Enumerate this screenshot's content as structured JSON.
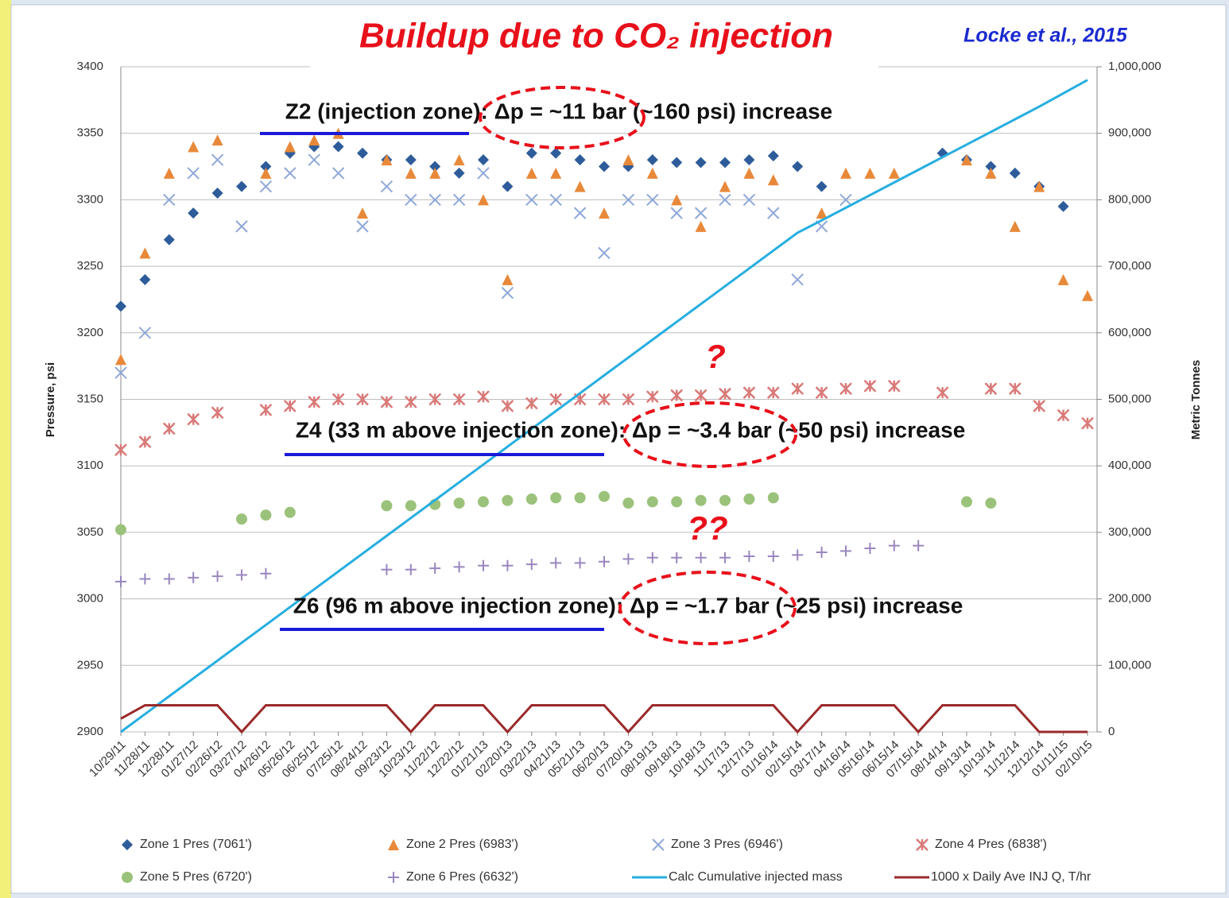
{
  "chart_data": {
    "type": "scatter",
    "title": "Buildup due to CO₂ injection",
    "source": "Locke et al., 2015",
    "y_label": "Pressure, psi",
    "y2_label": "Metric Tonnes",
    "annotations": [
      "Z2 (injection zone): Δp = ~11 bar (~160 psi) increase",
      "Z4 (33 m above injection zone): Δp = ~3.4 bar (~50 psi) increase",
      "Z6 (96 m above injection zone): Δp = ~1.7 bar (~25 psi) increase",
      "?",
      "??"
    ],
    "categories": [
      "10/29/11",
      "11/28/11",
      "12/28/11",
      "01/27/12",
      "02/26/12",
      "03/27/12",
      "04/26/12",
      "05/26/12",
      "06/25/12",
      "07/25/12",
      "08/24/12",
      "09/23/12",
      "10/23/12",
      "11/22/12",
      "12/22/12",
      "01/21/13",
      "02/20/13",
      "03/22/13",
      "04/21/13",
      "05/21/13",
      "06/20/13",
      "07/20/13",
      "08/19/13",
      "09/18/13",
      "10/18/13",
      "11/17/13",
      "12/17/13",
      "01/16/14",
      "02/15/14",
      "03/17/14",
      "04/16/14",
      "05/16/14",
      "06/15/14",
      "07/15/14",
      "08/14/14",
      "09/13/14",
      "10/13/14",
      "11/12/14",
      "12/12/14",
      "01/11/15",
      "02/10/15"
    ],
    "ylim": [
      2900,
      3400
    ],
    "yticks": [
      2900,
      2950,
      3000,
      3050,
      3100,
      3150,
      3200,
      3250,
      3300,
      3350,
      3400
    ],
    "y2lim": [
      0,
      1000000
    ],
    "y2ticks": [
      0,
      {
        "value": 100000,
        "label": "100,000"
      },
      {
        "value": 200000,
        "label": "200,000"
      },
      {
        "value": 300000,
        "label": "300,000"
      },
      {
        "value": 400000,
        "label": "400,000"
      },
      {
        "value": 500000,
        "label": "500,000"
      },
      {
        "value": 600000,
        "label": "600,000"
      },
      {
        "value": 700000,
        "label": "700,000"
      },
      {
        "value": 800000,
        "label": "800,000"
      },
      {
        "value": 900000,
        "label": "900,000"
      },
      {
        "value": 1000000,
        "label": "1,000,000"
      }
    ],
    "grid": true,
    "series": [
      {
        "name": "Zone 1 Pres (7061')",
        "color": "#2e5c9a",
        "marker": "diamond",
        "values": [
          3220,
          3240,
          3270,
          3290,
          3305,
          3310,
          3325,
          3335,
          3340,
          3340,
          3335,
          3330,
          3330,
          3325,
          3320,
          3330,
          3310,
          3335,
          3335,
          3330,
          3325,
          3325,
          3330,
          3328,
          3328,
          3328,
          3330,
          3333,
          3325,
          3310,
          null,
          null,
          null,
          null,
          3335,
          3330,
          3325,
          3320,
          3310,
          3295,
          null
        ]
      },
      {
        "name": "Zone 2 Pres (6983')",
        "color": "#e8893a",
        "marker": "triangle",
        "values": [
          3180,
          3260,
          3320,
          3340,
          3345,
          null,
          3320,
          3340,
          3345,
          3350,
          3290,
          3330,
          3320,
          3320,
          3330,
          3300,
          3240,
          3320,
          3320,
          3310,
          3290,
          3330,
          3320,
          3300,
          3280,
          3310,
          3320,
          3315,
          null,
          3290,
          3320,
          3320,
          3320,
          null,
          null,
          3330,
          3320,
          3280,
          3310,
          3240,
          3228
        ]
      },
      {
        "name": "Zone 3 Pres (6946')",
        "color": "#8fa8d8",
        "marker": "x",
        "values": [
          3170,
          3200,
          3300,
          3320,
          3330,
          3280,
          3310,
          3320,
          3330,
          3320,
          3280,
          3310,
          3300,
          3300,
          3300,
          3320,
          3230,
          3300,
          3300,
          3290,
          3260,
          3300,
          3300,
          3290,
          3290,
          3300,
          3300,
          3290,
          3240,
          3280,
          3300,
          null,
          null,
          null,
          null,
          null,
          null,
          null,
          null,
          null,
          null
        ]
      },
      {
        "name": "Zone 4 Pres (6838')",
        "color": "#d97a78",
        "marker": "asterisk",
        "values": [
          3112,
          3118,
          3128,
          3135,
          3140,
          null,
          3142,
          3145,
          3148,
          3150,
          3150,
          3148,
          3148,
          3150,
          3150,
          3152,
          3145,
          3147,
          3150,
          3150,
          3150,
          3150,
          3152,
          3153,
          3153,
          3154,
          3155,
          3155,
          3158,
          3155,
          3158,
          3160,
          3160,
          null,
          3155,
          null,
          3158,
          3158,
          3145,
          3138,
          3132
        ]
      },
      {
        "name": "Zone 5 Pres (6720')",
        "color": "#9bc27a",
        "marker": "circle",
        "values": [
          3052,
          null,
          null,
          null,
          null,
          3060,
          3063,
          3065,
          null,
          null,
          null,
          3070,
          3070,
          3071,
          3072,
          3073,
          3074,
          3075,
          3076,
          3076,
          3077,
          3072,
          3073,
          3073,
          3074,
          3074,
          3075,
          3076,
          null,
          null,
          null,
          null,
          null,
          null,
          null,
          3073,
          3072,
          null,
          null,
          null,
          null
        ]
      },
      {
        "name": "Zone 6 Pres (6632')",
        "color": "#9a86bf",
        "marker": "plus",
        "values": [
          3013,
          3015,
          3015,
          3016,
          3017,
          3018,
          3019,
          null,
          null,
          null,
          null,
          3022,
          3022,
          3023,
          3024,
          3025,
          3025,
          3026,
          3027,
          3027,
          3028,
          3030,
          3031,
          3031,
          3031,
          3031,
          3032,
          3032,
          3033,
          3035,
          3036,
          3038,
          3040,
          3040,
          null,
          null,
          null,
          null,
          null,
          null,
          null
        ]
      },
      {
        "name": "Calc Cumulative injected mass",
        "color": "#27aee0",
        "type": "line",
        "axis": "y2",
        "values": [
          0,
          26800,
          53600,
          80400,
          107200,
          134000,
          160800,
          187600,
          214400,
          241200,
          268000,
          294800,
          321600,
          348400,
          375200,
          402000,
          428800,
          455600,
          482400,
          509200,
          536000,
          562800,
          589600,
          616400,
          643200,
          670000,
          696800,
          723600,
          750400,
          769000,
          788000,
          807000,
          826000,
          845000,
          864000,
          883000,
          902000,
          921000,
          940000,
          960000,
          980000
        ]
      },
      {
        "name": "1000 x Daily Ave INJ Q, T/hr",
        "color": "#9b2a2a",
        "type": "line",
        "axis": "y2",
        "values": [
          20000,
          40000,
          40000,
          40000,
          40000,
          0,
          40000,
          40000,
          40000,
          40000,
          40000,
          40000,
          0,
          40000,
          40000,
          40000,
          0,
          40000,
          40000,
          40000,
          40000,
          0,
          40000,
          40000,
          40000,
          40000,
          40000,
          40000,
          0,
          40000,
          40000,
          40000,
          40000,
          0,
          40000,
          40000,
          40000,
          40000,
          0,
          0,
          0
        ]
      }
    ]
  }
}
